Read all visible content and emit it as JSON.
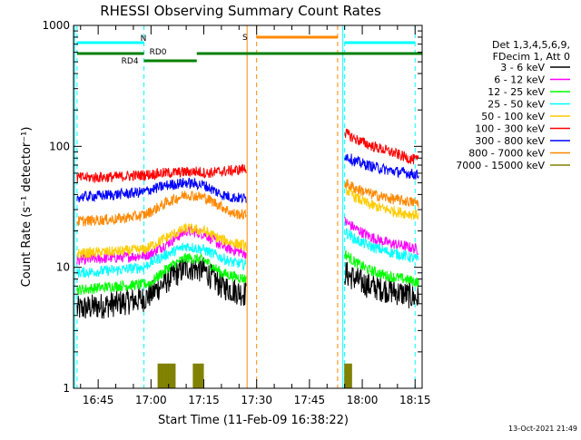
{
  "chart_data": {
    "type": "line",
    "title": "RHESSI Observing Summary Count Rates",
    "xlabel": "Start Time (11-Feb-09 16:38:22)",
    "ylabel": "Count Rate (s⁻¹ detector⁻¹)",
    "yscale": "log",
    "ylim": [
      1,
      1000
    ],
    "xlim": [
      "16:38",
      "18:17"
    ],
    "x_ticks": [
      "16:45",
      "17:00",
      "17:15",
      "17:30",
      "17:45",
      "18:00",
      "18:15"
    ],
    "y_ticks": [
      "1",
      "10",
      "100",
      "1000"
    ],
    "legend_header": [
      "Det 1,3,4,5,6,9,",
      "FDecim 1, Att 0"
    ],
    "footer": "13-Oct-2021 21:49",
    "gaps": [
      [
        "17:26",
        "17:55"
      ]
    ],
    "series": [
      {
        "name": "3 - 6 keV",
        "color": "#000000",
        "x": [
          "16:39",
          "16:50",
          "16:58",
          "17:00",
          "17:05",
          "17:10",
          "17:15",
          "17:20",
          "17:23",
          "17:27",
          "17:55",
          "17:58",
          "18:02",
          "18:07",
          "18:12",
          "18:16"
        ],
        "y": [
          4.5,
          5.0,
          5.5,
          6,
          8,
          10,
          9.5,
          7,
          6.5,
          6,
          9,
          8,
          7,
          6.5,
          6,
          5.5
        ]
      },
      {
        "name": "6 - 12 keV",
        "color": "#ff00ff",
        "x": [
          "16:39",
          "16:50",
          "16:58",
          "17:00",
          "17:05",
          "17:10",
          "17:15",
          "17:20",
          "17:23",
          "17:27",
          "17:55",
          "17:58",
          "18:02",
          "18:07",
          "18:12",
          "18:16"
        ],
        "y": [
          11.5,
          12,
          12.5,
          13,
          16,
          20,
          19,
          15,
          14,
          13,
          24,
          21,
          18,
          16,
          15,
          14
        ]
      },
      {
        "name": "12 - 25 keV",
        "color": "#00ff00",
        "x": [
          "16:39",
          "16:50",
          "16:58",
          "17:00",
          "17:05",
          "17:10",
          "17:15",
          "17:20",
          "17:23",
          "17:27",
          "17:55",
          "17:58",
          "18:02",
          "18:07",
          "18:12",
          "18:16"
        ],
        "y": [
          6.5,
          7,
          7.2,
          7.5,
          10,
          12,
          11.5,
          9,
          8.5,
          8,
          13,
          11,
          9.5,
          8.5,
          8,
          7.5
        ]
      },
      {
        "name": "25 - 50 keV",
        "color": "#00ffff",
        "x": [
          "16:39",
          "16:50",
          "16:58",
          "17:00",
          "17:05",
          "17:10",
          "17:15",
          "17:20",
          "17:23",
          "17:27",
          "17:55",
          "17:58",
          "18:02",
          "18:07",
          "18:12",
          "18:16"
        ],
        "y": [
          9,
          9.5,
          10,
          11,
          13,
          15,
          14,
          12,
          11,
          10.5,
          20,
          17,
          15,
          13.5,
          12.5,
          11.5
        ]
      },
      {
        "name": "50 - 100 keV",
        "color": "#ffcc00",
        "x": [
          "16:39",
          "16:50",
          "16:58",
          "17:00",
          "17:05",
          "17:10",
          "17:15",
          "17:20",
          "17:23",
          "17:27",
          "17:55",
          "17:58",
          "18:02",
          "18:07",
          "18:12",
          "18:16"
        ],
        "y": [
          13,
          13.5,
          14,
          15,
          18,
          21,
          20,
          17,
          16,
          15,
          45,
          38,
          33,
          30,
          28,
          27
        ]
      },
      {
        "name": "100 - 300 keV",
        "color": "#ff0000",
        "x": [
          "16:39",
          "16:50",
          "16:58",
          "17:03",
          "17:08",
          "17:13",
          "17:16",
          "17:20",
          "17:25",
          "17:27",
          "17:55",
          "17:58",
          "18:03",
          "18:08",
          "18:13",
          "18:16"
        ],
        "y": [
          55,
          56,
          58,
          60,
          61,
          62,
          60,
          62,
          64,
          66,
          130,
          115,
          100,
          90,
          80,
          76
        ]
      },
      {
        "name": "300 - 800 keV",
        "color": "#0000ff",
        "x": [
          "16:39",
          "16:50",
          "16:58",
          "17:00",
          "17:05",
          "17:10",
          "17:15",
          "17:20",
          "17:23",
          "17:27",
          "17:55",
          "17:58",
          "18:03",
          "18:08",
          "18:13",
          "18:16"
        ],
        "y": [
          38,
          40,
          42,
          44,
          48,
          50,
          48,
          40,
          38,
          37,
          85,
          75,
          68,
          63,
          60,
          58
        ]
      },
      {
        "name": "800 - 7000 keV",
        "color": "#ff8800",
        "x": [
          "16:39",
          "16:50",
          "16:58",
          "17:00",
          "17:05",
          "17:10",
          "17:15",
          "17:20",
          "17:23",
          "17:27",
          "17:55",
          "17:58",
          "18:03",
          "18:08",
          "18:13",
          "18:16"
        ],
        "y": [
          24,
          25,
          27,
          29,
          35,
          40,
          38,
          32,
          28,
          27,
          50,
          45,
          40,
          37,
          35,
          34
        ]
      },
      {
        "name": "7000 - 15000 keV",
        "color": "#808000",
        "x": [
          "17:02",
          "17:07",
          "17:12",
          "17:15",
          "17:55",
          "17:57"
        ],
        "y": [
          1.6,
          1.6,
          1.6,
          1.6,
          1.6,
          1.6
        ]
      }
    ],
    "flags": [
      {
        "label": "N",
        "color": "#00ffff",
        "x": [
          [
            "16:39",
            "16:58"
          ],
          [
            "17:55",
            "18:15"
          ]
        ]
      },
      {
        "label": "RD0",
        "color": "#008000",
        "x": [
          [
            "16:39",
            "16:58"
          ],
          [
            "17:13",
            "18:17"
          ]
        ]
      },
      {
        "label": "RD4",
        "color": "#008000",
        "x": [
          [
            "16:58",
            "17:13"
          ]
        ]
      },
      {
        "label": "S",
        "color": "#ff8800",
        "x": [
          [
            "17:30",
            "17:53"
          ]
        ]
      }
    ]
  }
}
